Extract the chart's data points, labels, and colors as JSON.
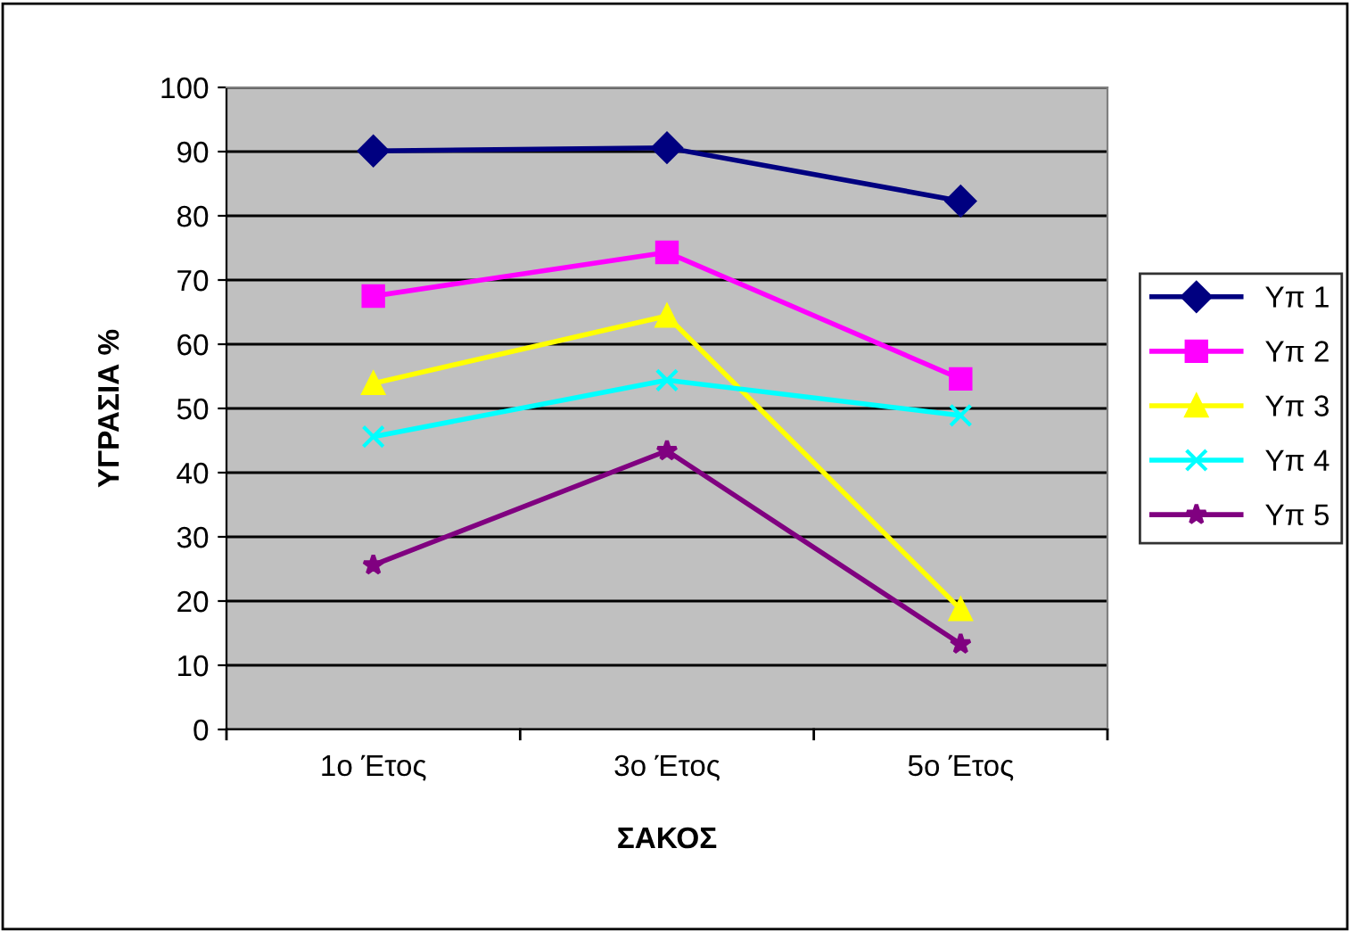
{
  "chart_data": {
    "type": "line",
    "xlabel": "ΣΑΚΟΣ",
    "ylabel": "ΥΓΡΑΣΙΑ %",
    "categories": [
      "1ο Έτος",
      "3ο Έτος",
      "5ο Έτος"
    ],
    "series": [
      {
        "name": "Υπ 1",
        "color": "#000080",
        "marker": "diamond",
        "values": [
          90.1,
          90.6,
          82.3
        ]
      },
      {
        "name": "Υπ 2",
        "color": "#ff00ff",
        "marker": "square",
        "values": [
          67.5,
          74.3,
          54.6
        ]
      },
      {
        "name": "Υπ 3",
        "color": "#ffff00",
        "marker": "triangle",
        "values": [
          53.9,
          64.4,
          18.7
        ]
      },
      {
        "name": "Υπ 4",
        "color": "#00ffff",
        "marker": "cross",
        "values": [
          45.6,
          54.4,
          48.9
        ]
      },
      {
        "name": "Υπ 5",
        "color": "#800080",
        "marker": "star",
        "values": [
          25.6,
          43.4,
          13.3
        ]
      }
    ],
    "ylim": [
      0,
      100
    ],
    "yticks": [
      0,
      10,
      20,
      30,
      40,
      50,
      60,
      70,
      80,
      90,
      100
    ],
    "grid": "y",
    "legend": "right",
    "line_style": "solid"
  }
}
